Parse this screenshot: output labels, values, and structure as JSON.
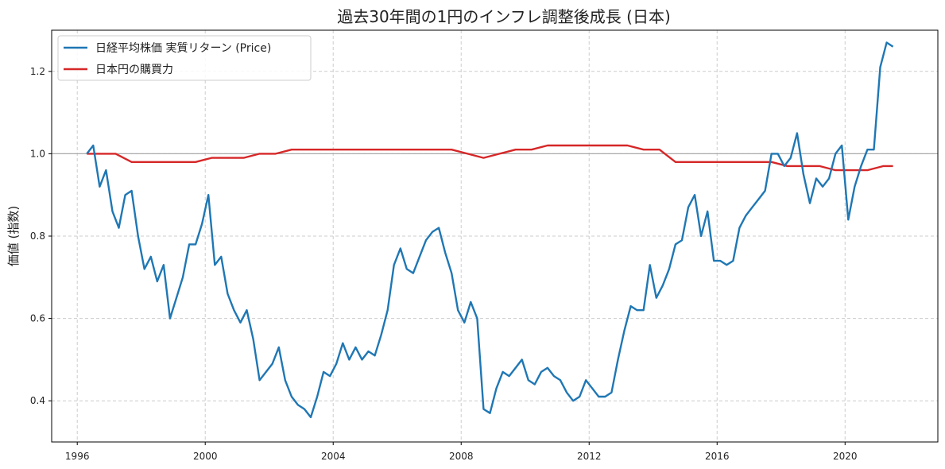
{
  "chart_data": {
    "type": "line",
    "title": "過去30年間の1円のインフレ調整後成長 (日本)",
    "xlabel": "",
    "ylabel": "価値 (指数)",
    "xlim": [
      1995.2,
      2022.9
    ],
    "ylim": [
      0.3,
      1.3
    ],
    "x_ticks": [
      1996,
      2000,
      2004,
      2008,
      2012,
      2016,
      2020
    ],
    "y_ticks": [
      0.4,
      0.6,
      0.8,
      1.0,
      1.2
    ],
    "y_tick_labels": [
      "0.4",
      "0.6",
      "0.8",
      "1.0",
      "1.2"
    ],
    "grid": true,
    "legend_position": "top-left",
    "reference_line": 1.0,
    "series": [
      {
        "name": "日経平均株価 実質リターン (Price)",
        "color": "#1f77b4",
        "x": [
          1996.3,
          1996.5,
          1996.7,
          1996.9,
          1997.1,
          1997.3,
          1997.5,
          1997.7,
          1997.9,
          1998.1,
          1998.3,
          1998.5,
          1998.7,
          1998.9,
          1999.1,
          1999.3,
          1999.5,
          1999.7,
          1999.9,
          2000.1,
          2000.3,
          2000.5,
          2000.7,
          2000.9,
          2001.1,
          2001.3,
          2001.5,
          2001.7,
          2001.9,
          2002.1,
          2002.3,
          2002.5,
          2002.7,
          2002.9,
          2003.1,
          2003.3,
          2003.5,
          2003.7,
          2003.9,
          2004.1,
          2004.3,
          2004.5,
          2004.7,
          2004.9,
          2005.1,
          2005.3,
          2005.5,
          2005.7,
          2005.9,
          2006.1,
          2006.3,
          2006.5,
          2006.7,
          2006.9,
          2007.1,
          2007.3,
          2007.5,
          2007.7,
          2007.9,
          2008.1,
          2008.3,
          2008.5,
          2008.7,
          2008.9,
          2009.1,
          2009.3,
          2009.5,
          2009.7,
          2009.9,
          2010.1,
          2010.3,
          2010.5,
          2010.7,
          2010.9,
          2011.1,
          2011.3,
          2011.5,
          2011.7,
          2011.9,
          2012.1,
          2012.3,
          2012.5,
          2012.7,
          2012.9,
          2013.1,
          2013.3,
          2013.5,
          2013.7,
          2013.9,
          2014.1,
          2014.3,
          2014.5,
          2014.7,
          2014.9,
          2015.1,
          2015.3,
          2015.5,
          2015.7,
          2015.9,
          2016.1,
          2016.3,
          2016.5,
          2016.7,
          2016.9,
          2017.1,
          2017.3,
          2017.5,
          2017.7,
          2017.9,
          2018.1,
          2018.3,
          2018.5,
          2018.7,
          2018.9,
          2019.1,
          2019.3,
          2019.5,
          2019.7,
          2019.9,
          2020.1,
          2020.3,
          2020.5,
          2020.7,
          2020.9,
          2021.1,
          2021.3,
          2021.5
        ],
        "values": [
          1.0,
          1.02,
          0.92,
          0.96,
          0.86,
          0.82,
          0.9,
          0.91,
          0.8,
          0.72,
          0.75,
          0.69,
          0.73,
          0.6,
          0.65,
          0.7,
          0.78,
          0.78,
          0.83,
          0.9,
          0.73,
          0.75,
          0.66,
          0.62,
          0.59,
          0.62,
          0.55,
          0.45,
          0.47,
          0.49,
          0.53,
          0.45,
          0.41,
          0.39,
          0.38,
          0.36,
          0.41,
          0.47,
          0.46,
          0.49,
          0.54,
          0.5,
          0.53,
          0.5,
          0.52,
          0.51,
          0.56,
          0.62,
          0.73,
          0.77,
          0.72,
          0.71,
          0.75,
          0.79,
          0.81,
          0.82,
          0.76,
          0.71,
          0.62,
          0.59,
          0.64,
          0.6,
          0.38,
          0.37,
          0.43,
          0.47,
          0.46,
          0.48,
          0.5,
          0.45,
          0.44,
          0.47,
          0.48,
          0.46,
          0.45,
          0.42,
          0.4,
          0.41,
          0.45,
          0.43,
          0.41,
          0.41,
          0.42,
          0.5,
          0.57,
          0.63,
          0.62,
          0.62,
          0.73,
          0.65,
          0.68,
          0.72,
          0.78,
          0.79,
          0.87,
          0.9,
          0.8,
          0.86,
          0.74,
          0.74,
          0.73,
          0.74,
          0.82,
          0.85,
          0.87,
          0.89,
          0.91,
          1.0,
          1.0,
          0.97,
          0.99,
          1.05,
          0.95,
          0.88,
          0.94,
          0.92,
          0.94,
          1.0,
          1.02,
          0.84,
          0.92,
          0.97,
          1.01,
          1.01,
          1.21,
          1.27,
          1.26
        ]
      },
      {
        "name": "日本円の購買力",
        "color": "#d62728",
        "x": [
          1996.3,
          1996.8,
          1997.2,
          1997.7,
          1998.2,
          1998.7,
          1999.2,
          1999.7,
          2000.2,
          2000.7,
          2001.2,
          2001.7,
          2002.2,
          2002.7,
          2003.2,
          2003.7,
          2004.2,
          2004.7,
          2005.2,
          2005.7,
          2006.2,
          2006.7,
          2007.2,
          2007.7,
          2008.2,
          2008.7,
          2009.2,
          2009.7,
          2010.2,
          2010.7,
          2011.2,
          2011.7,
          2012.2,
          2012.7,
          2013.2,
          2013.7,
          2014.2,
          2014.7,
          2015.2,
          2015.7,
          2016.2,
          2016.7,
          2017.2,
          2017.7,
          2018.2,
          2018.7,
          2019.2,
          2019.7,
          2020.2,
          2020.7,
          2021.2,
          2021.5
        ],
        "values": [
          1.0,
          1.0,
          1.0,
          0.98,
          0.98,
          0.98,
          0.98,
          0.98,
          0.99,
          0.99,
          0.99,
          1.0,
          1.0,
          1.01,
          1.01,
          1.01,
          1.01,
          1.01,
          1.01,
          1.01,
          1.01,
          1.01,
          1.01,
          1.01,
          1.0,
          0.99,
          1.0,
          1.01,
          1.01,
          1.02,
          1.02,
          1.02,
          1.02,
          1.02,
          1.02,
          1.01,
          1.01,
          0.98,
          0.98,
          0.98,
          0.98,
          0.98,
          0.98,
          0.98,
          0.97,
          0.97,
          0.97,
          0.96,
          0.96,
          0.96,
          0.97,
          0.97
        ]
      }
    ]
  }
}
